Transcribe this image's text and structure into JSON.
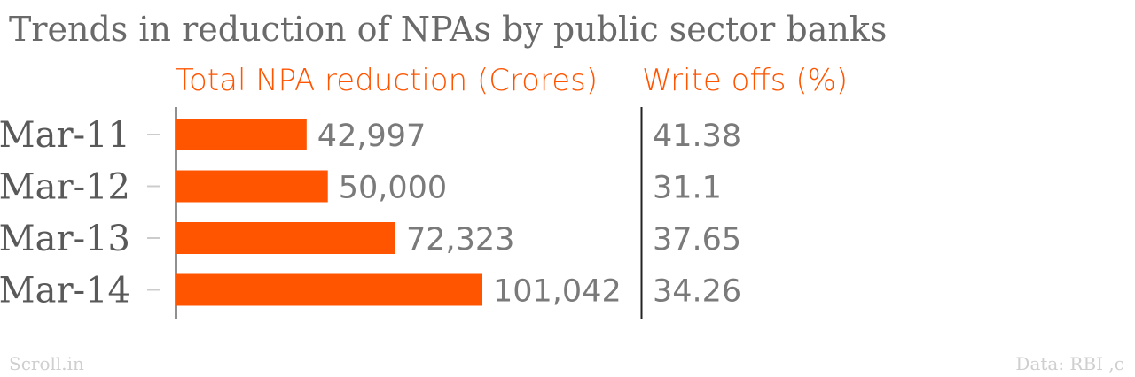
{
  "title": "Trends in reduction of NPAs by public sector banks",
  "colors": {
    "accent": "#ff5400",
    "title": "#6a6a6a",
    "category": "#595959",
    "value": "#7a7a7a",
    "axis": "#222222",
    "footer": "#cfcfcf"
  },
  "footer": {
    "source_left": "Scroll.in",
    "source_right": "Data: RBI ,c"
  },
  "chart_data": {
    "type": "bar",
    "orientation": "horizontal",
    "categories": [
      "Mar-11",
      "Mar-12",
      "Mar-13",
      "Mar-14"
    ],
    "series": [
      {
        "name": "Total NPA reduction (Crores)",
        "values": [
          42997,
          50000,
          72323,
          101042
        ],
        "value_labels": [
          "42,997",
          "50,000",
          "72,323",
          "101,042"
        ]
      }
    ],
    "table_columns": [
      {
        "name": "Write offs (%)",
        "values": [
          41.38,
          31.1,
          37.65,
          34.26
        ],
        "value_labels": [
          "41.38",
          "31.1",
          "37.65",
          "34.26"
        ]
      }
    ],
    "title": "Trends in reduction of NPAs by public sector banks",
    "legend": "none",
    "grid": false
  }
}
